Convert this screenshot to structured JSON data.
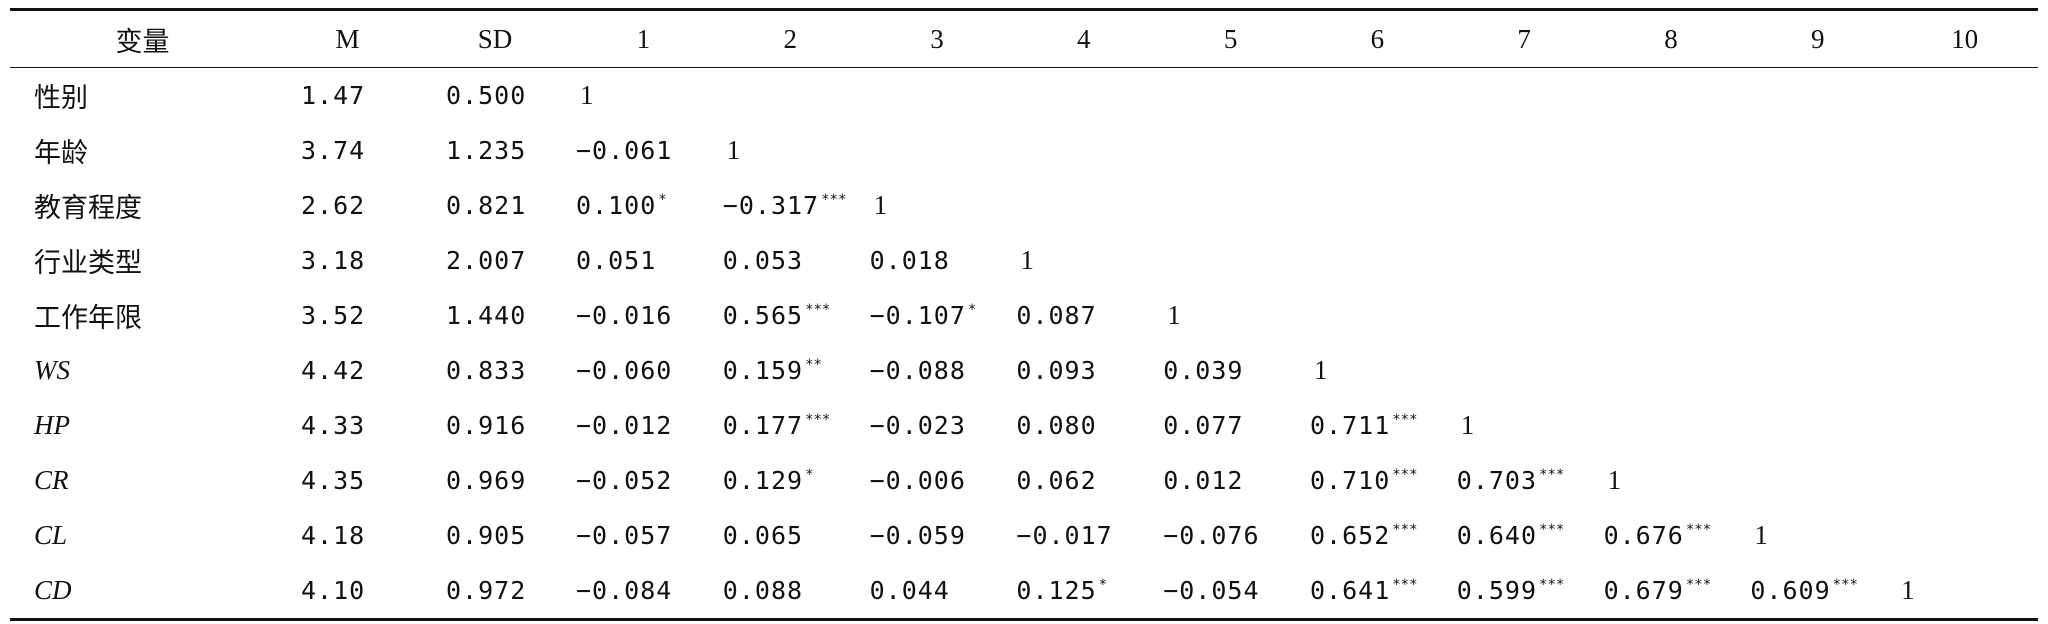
{
  "table": {
    "headers": [
      "变量",
      "M",
      "SD",
      "1",
      "2",
      "3",
      "4",
      "5",
      "6",
      "7",
      "8",
      "9",
      "10"
    ],
    "rows": [
      {
        "label": "性别",
        "italic": false,
        "m": "1.47",
        "sd": "0.500",
        "cells": [
          {
            "v": "1",
            "s": ""
          }
        ]
      },
      {
        "label": "年龄",
        "italic": false,
        "m": "3.74",
        "sd": "1.235",
        "cells": [
          {
            "v": "−0.061",
            "s": ""
          },
          {
            "v": "1",
            "s": ""
          }
        ]
      },
      {
        "label": "教育程度",
        "italic": false,
        "m": "2.62",
        "sd": "0.821",
        "cells": [
          {
            "v": "0.100",
            "s": "*"
          },
          {
            "v": "−0.317",
            "s": "***"
          },
          {
            "v": "1",
            "s": ""
          }
        ]
      },
      {
        "label": "行业类型",
        "italic": false,
        "m": "3.18",
        "sd": "2.007",
        "cells": [
          {
            "v": "0.051",
            "s": ""
          },
          {
            "v": "0.053",
            "s": ""
          },
          {
            "v": "0.018",
            "s": ""
          },
          {
            "v": "1",
            "s": ""
          }
        ]
      },
      {
        "label": "工作年限",
        "italic": false,
        "m": "3.52",
        "sd": "1.440",
        "cells": [
          {
            "v": "−0.016",
            "s": ""
          },
          {
            "v": "0.565",
            "s": "***"
          },
          {
            "v": "−0.107",
            "s": "*"
          },
          {
            "v": "0.087",
            "s": ""
          },
          {
            "v": "1",
            "s": ""
          }
        ]
      },
      {
        "label": "WS",
        "italic": true,
        "m": "4.42",
        "sd": "0.833",
        "cells": [
          {
            "v": "−0.060",
            "s": ""
          },
          {
            "v": "0.159",
            "s": "**"
          },
          {
            "v": "−0.088",
            "s": ""
          },
          {
            "v": "0.093",
            "s": ""
          },
          {
            "v": "0.039",
            "s": ""
          },
          {
            "v": "1",
            "s": ""
          }
        ]
      },
      {
        "label": "HP",
        "italic": true,
        "m": "4.33",
        "sd": "0.916",
        "cells": [
          {
            "v": "−0.012",
            "s": ""
          },
          {
            "v": "0.177",
            "s": "***"
          },
          {
            "v": "−0.023",
            "s": ""
          },
          {
            "v": "0.080",
            "s": ""
          },
          {
            "v": "0.077",
            "s": ""
          },
          {
            "v": "0.711",
            "s": "***"
          },
          {
            "v": "1",
            "s": ""
          }
        ]
      },
      {
        "label": "CR",
        "italic": true,
        "m": "4.35",
        "sd": "0.969",
        "cells": [
          {
            "v": "−0.052",
            "s": ""
          },
          {
            "v": "0.129",
            "s": "*"
          },
          {
            "v": "−0.006",
            "s": ""
          },
          {
            "v": "0.062",
            "s": ""
          },
          {
            "v": "0.012",
            "s": ""
          },
          {
            "v": "0.710",
            "s": "***"
          },
          {
            "v": "0.703",
            "s": "***"
          },
          {
            "v": "1",
            "s": ""
          }
        ]
      },
      {
        "label": "CL",
        "italic": true,
        "m": "4.18",
        "sd": "0.905",
        "cells": [
          {
            "v": "−0.057",
            "s": ""
          },
          {
            "v": "0.065",
            "s": ""
          },
          {
            "v": "−0.059",
            "s": ""
          },
          {
            "v": "−0.017",
            "s": ""
          },
          {
            "v": "−0.076",
            "s": ""
          },
          {
            "v": "0.652",
            "s": "***"
          },
          {
            "v": "0.640",
            "s": "***"
          },
          {
            "v": "0.676",
            "s": "***"
          },
          {
            "v": "1",
            "s": ""
          }
        ]
      },
      {
        "label": "CD",
        "italic": true,
        "m": "4.10",
        "sd": "0.972",
        "cells": [
          {
            "v": "−0.084",
            "s": ""
          },
          {
            "v": "0.088",
            "s": ""
          },
          {
            "v": "0.044",
            "s": ""
          },
          {
            "v": "0.125",
            "s": "*"
          },
          {
            "v": "−0.054",
            "s": ""
          },
          {
            "v": "0.641",
            "s": "***"
          },
          {
            "v": "0.599",
            "s": "***"
          },
          {
            "v": "0.679",
            "s": "***"
          },
          {
            "v": "0.609",
            "s": "***"
          },
          {
            "v": "1",
            "s": ""
          }
        ]
      }
    ]
  }
}
